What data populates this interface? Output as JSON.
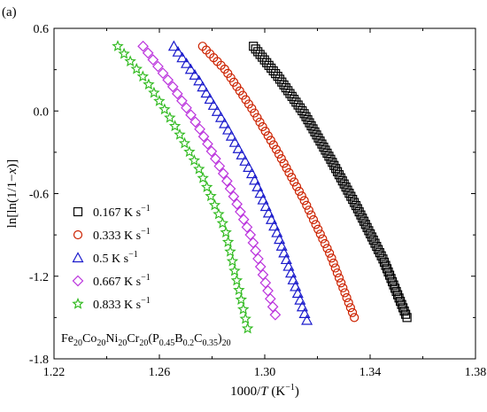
{
  "chart_data": {
    "type": "scatter",
    "panel_label": "(a)",
    "xlabel": {
      "base": "1000/",
      "italic": "T",
      "unit": " (K",
      "sup": "−1",
      "close": ")"
    },
    "ylabel": {
      "prefix": "ln[ln(1/1−",
      "italic": "x",
      "suffix": ")]"
    },
    "xlim": [
      1.22,
      1.38
    ],
    "ylim": [
      -1.8,
      0.6
    ],
    "xticks": [
      "1.22",
      "1.26",
      "1.30",
      "1.34",
      "1.38"
    ],
    "yticks": [
      "0.6",
      "0.0",
      "-0.6",
      "-1.2",
      "-1.8"
    ],
    "legend_position": "lower-left",
    "annotation": {
      "parts": [
        {
          "t": "Fe"
        },
        {
          "sub": "20"
        },
        {
          "t": "Co"
        },
        {
          "sub": "20"
        },
        {
          "t": "Ni"
        },
        {
          "sub": "20"
        },
        {
          "t": "Cr"
        },
        {
          "sub": "20"
        },
        {
          "t": "(P"
        },
        {
          "sub": "0.45"
        },
        {
          "t": "B"
        },
        {
          "sub": "0.2"
        },
        {
          "t": "C"
        },
        {
          "sub": "0.35"
        },
        {
          "t": ")"
        },
        {
          "sub": "20"
        }
      ]
    },
    "series": [
      {
        "name": "0.167 K s",
        "sup": "−1",
        "marker": "square",
        "color": "#000000",
        "count": 90,
        "curve": [
          [
            1.2957,
            0.47
          ],
          [
            1.305,
            0.25
          ],
          [
            1.315,
            -0.02
          ],
          [
            1.325,
            -0.35
          ],
          [
            1.335,
            -0.7
          ],
          [
            1.345,
            -1.08
          ],
          [
            1.354,
            -1.5
          ]
        ]
      },
      {
        "name": "0.333 K s",
        "sup": "−1",
        "marker": "circle",
        "color": "#cc2200",
        "count": 60,
        "curve": [
          [
            1.2764,
            0.47
          ],
          [
            1.285,
            0.3
          ],
          [
            1.295,
            0.02
          ],
          [
            1.305,
            -0.3
          ],
          [
            1.315,
            -0.65
          ],
          [
            1.325,
            -1.05
          ],
          [
            1.334,
            -1.5
          ]
        ]
      },
      {
        "name": "0.5 K s",
        "sup": "−1",
        "marker": "triangle",
        "color": "#1a1acc",
        "count": 44,
        "curve": [
          [
            1.2655,
            0.47
          ],
          [
            1.275,
            0.22
          ],
          [
            1.285,
            -0.1
          ],
          [
            1.295,
            -0.45
          ],
          [
            1.305,
            -0.9
          ],
          [
            1.316,
            -1.52
          ]
        ]
      },
      {
        "name": "0.667 K s",
        "sup": "−1",
        "marker": "diamond",
        "color": "#bb33dd",
        "count": 37,
        "curve": [
          [
            1.2538,
            0.47
          ],
          [
            1.265,
            0.18
          ],
          [
            1.275,
            -0.12
          ],
          [
            1.285,
            -0.48
          ],
          [
            1.295,
            -0.92
          ],
          [
            1.304,
            -1.48
          ]
        ]
      },
      {
        "name": "0.833 K s",
        "sup": "−1",
        "marker": "star",
        "color": "#33bb22",
        "count": 33,
        "curve": [
          [
            1.2442,
            0.47
          ],
          [
            1.255,
            0.22
          ],
          [
            1.265,
            -0.08
          ],
          [
            1.275,
            -0.42
          ],
          [
            1.285,
            -0.86
          ],
          [
            1.2935,
            -1.58
          ]
        ]
      }
    ]
  }
}
